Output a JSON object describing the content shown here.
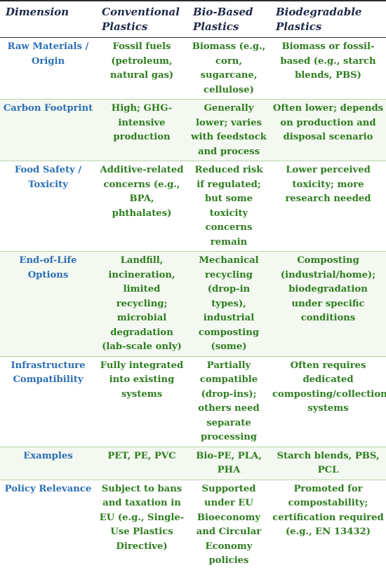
{
  "headers": {
    "dimension": "Dimension",
    "conventional": "Conventional Plastics",
    "bio_based": "Bio-Based Plastics",
    "biodegradable": "Biodegradable Plastics"
  },
  "rows": [
    {
      "dimension": "Raw Materials / Origin",
      "conventional": "Fossil fuels (petroleum, natural gas)",
      "bio_based": "Biomass (e.g., corn, sugarcane, cellulose)",
      "biodegradable": "Biomass or fossil-based (e.g., starch blends, PBS)"
    },
    {
      "dimension": "Carbon Footprint",
      "conventional": "High; GHG-intensive production",
      "bio_based": "Generally lower; varies with feedstock and process",
      "biodegradable": "Often lower; depends on production and disposal scenario"
    },
    {
      "dimension": "Food Safety / Toxicity",
      "conventional": "Additive-related concerns (e.g., BPA, phthalates)",
      "bio_based": "Reduced risk if regulated; but some toxicity concerns remain",
      "biodegradable": "Lower perceived toxicity; more research needed"
    },
    {
      "dimension": "End-of-Life Options",
      "conventional": "Landfill, incineration, limited recycling; microbial degradation (lab-scale only)",
      "bio_based": "Mechanical recycling (drop-in types), industrial composting (some)",
      "biodegradable": "Composting (industrial/home); biodegradation under specific conditions"
    },
    {
      "dimension": "Infrastructure Compatibility",
      "conventional": "Fully integrated into existing systems",
      "bio_based": "Partially compatible (drop-ins); others need separate processing",
      "biodegradable": "Often requires dedicated composting/collection systems"
    },
    {
      "dimension": "Examples",
      "conventional": "PET, PE, PVC",
      "bio_based": "Bio-PE, PLA, PHA",
      "biodegradable": "Starch blends, PBS, PCL"
    },
    {
      "dimension": "Policy Relevance",
      "conventional": "Subject to bans and taxation in EU (e.g., Single-Use Plastics Directive)",
      "bio_based": "Supported under EU Bioeconomy and Circular Economy policies",
      "biodegradable": "Promoted for compostability; certification required (e.g., EN 13432)"
    }
  ],
  "colors": {
    "header_text": "#1e2a4a",
    "dimension_text": "#2b6fb6",
    "cell_text": "#2e7d1f",
    "row_separator": "#b9d3ad",
    "alt_row_background": "#f3f8f0"
  }
}
